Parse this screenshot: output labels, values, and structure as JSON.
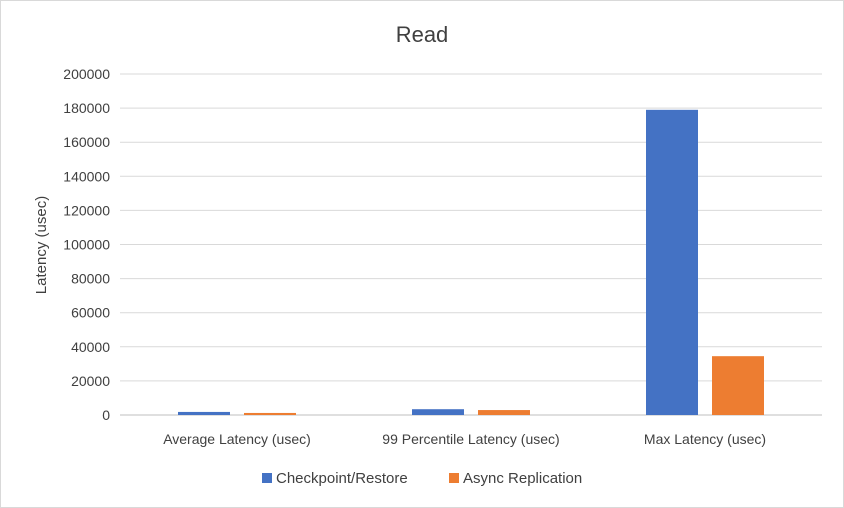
{
  "chart_data": {
    "type": "bar",
    "title": "Read",
    "xlabel": "",
    "ylabel": "Latency (usec)",
    "categories": [
      "Average Latency (usec)",
      "99 Percentile Latency (usec)",
      "Max Latency (usec)"
    ],
    "series": [
      {
        "name": "Checkpoint/Restore",
        "color": "#4472c4",
        "values": [
          1800,
          3400,
          179000
        ]
      },
      {
        "name": "Async Replication",
        "color": "#ed7d31",
        "values": [
          1200,
          2900,
          34500
        ]
      }
    ],
    "ylim": [
      0,
      200000
    ],
    "yticks": [
      "0",
      "20000",
      "40000",
      "60000",
      "80000",
      "100000",
      "120000",
      "140000",
      "160000",
      "180000",
      "200000"
    ],
    "grid": true,
    "legend_position": "bottom"
  }
}
